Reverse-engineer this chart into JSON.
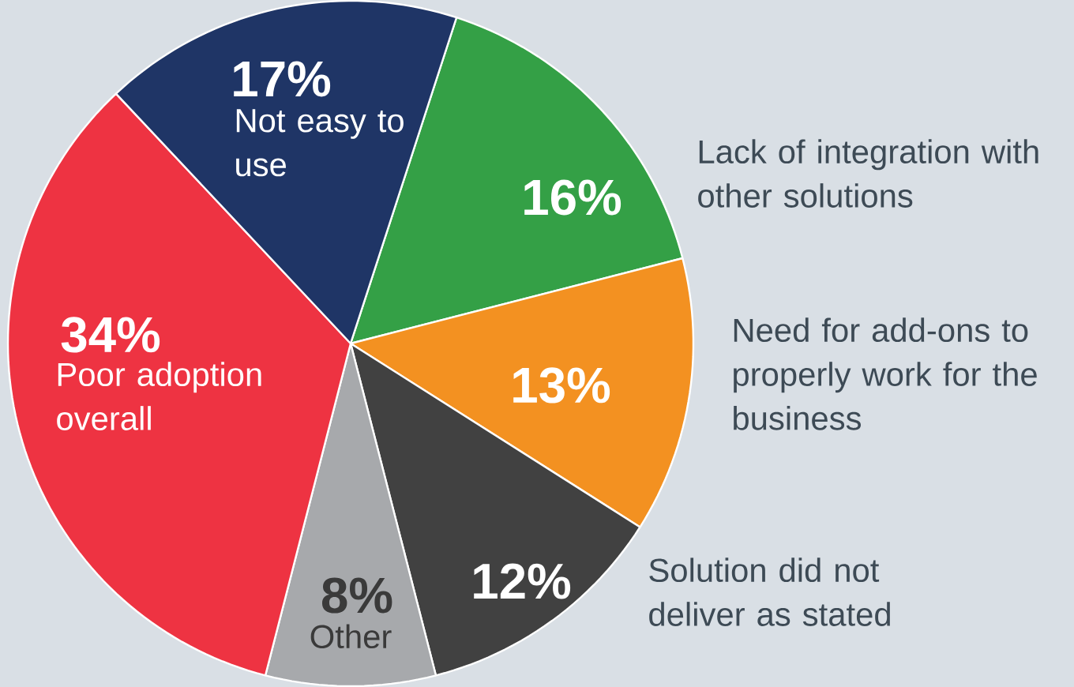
{
  "chart_data": {
    "type": "pie",
    "categories": [
      "Lack of integration with other solutions",
      "Need for add-ons to properly work for the business",
      "Solution did not deliver as stated",
      "Other",
      "Poor adoption overall",
      "Not easy to use"
    ],
    "values": [
      16,
      13,
      12,
      8,
      34,
      17
    ],
    "value_labels": [
      "16%",
      "13%",
      "12%",
      "8%",
      "34%",
      "17%"
    ],
    "colors": [
      "#34a046",
      "#f39121",
      "#414141",
      "#a7a9ac",
      "#ee3342",
      "#1f3566"
    ]
  }
}
